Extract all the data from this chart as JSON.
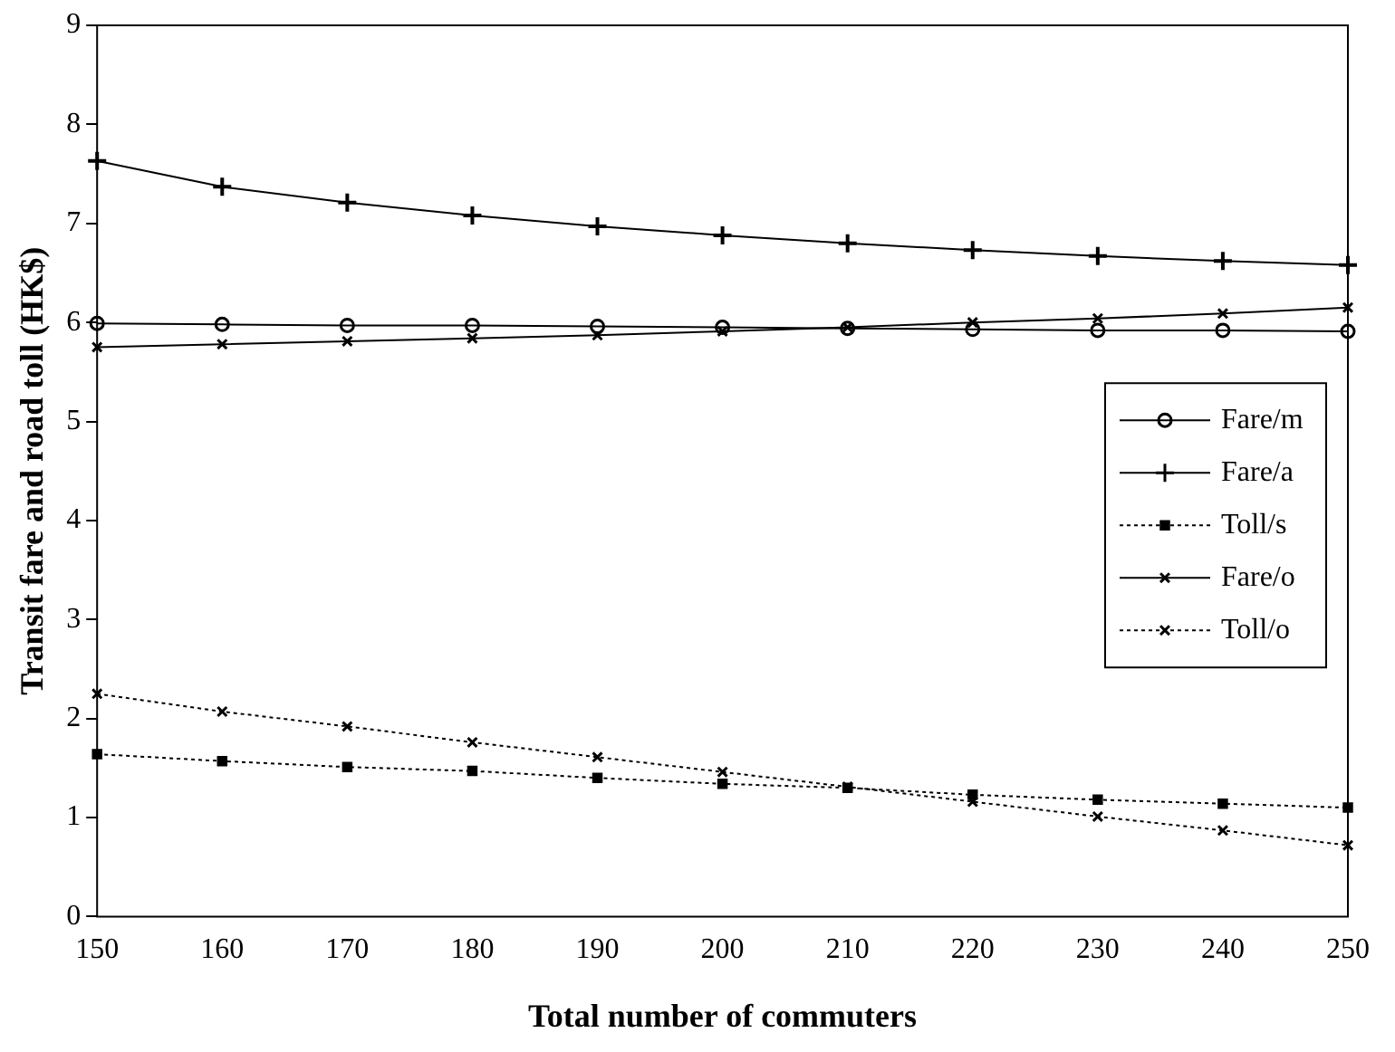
{
  "chart_data": {
    "type": "line",
    "xlabel": "Total number of commuters",
    "ylabel": "Transit fare and road toll (HK$)",
    "x": [
      150,
      160,
      170,
      180,
      190,
      200,
      210,
      220,
      230,
      240,
      250
    ],
    "xlim": [
      150,
      250
    ],
    "xticks": [
      150,
      160,
      170,
      180,
      190,
      200,
      210,
      220,
      230,
      240,
      250
    ],
    "ylim": [
      0,
      9
    ],
    "yticks": [
      0,
      1,
      2,
      3,
      4,
      5,
      6,
      7,
      8,
      9
    ],
    "grid": false,
    "legend": "right",
    "series": [
      {
        "name": "Fare/m",
        "color": "#000000",
        "marker": "circle",
        "line_style": "solid",
        "values": [
          5.99,
          5.98,
          5.97,
          5.97,
          5.96,
          5.95,
          5.94,
          5.93,
          5.92,
          5.92,
          5.91
        ]
      },
      {
        "name": "Fare/a",
        "color": "#000000",
        "marker": "cross",
        "line_style": "solid",
        "values": [
          7.63,
          7.37,
          7.21,
          7.08,
          6.97,
          6.88,
          6.8,
          6.73,
          6.67,
          6.62,
          6.58
        ]
      },
      {
        "name": "Toll/s",
        "color": "#000000",
        "marker": "square",
        "line_style": "dotted",
        "values": [
          1.64,
          1.57,
          1.51,
          1.47,
          1.4,
          1.34,
          1.3,
          1.23,
          1.18,
          1.14,
          1.1
        ]
      },
      {
        "name": "Fare/o",
        "color": "#000000",
        "marker": "x",
        "line_style": "solid",
        "values": [
          5.75,
          5.78,
          5.81,
          5.84,
          5.87,
          5.91,
          5.95,
          6.0,
          6.04,
          6.09,
          6.15
        ]
      },
      {
        "name": "Toll/o",
        "color": "#000000",
        "marker": "x",
        "line_style": "dotted",
        "values": [
          2.25,
          2.07,
          1.92,
          1.76,
          1.61,
          1.46,
          1.31,
          1.16,
          1.01,
          0.87,
          0.72
        ]
      }
    ]
  }
}
